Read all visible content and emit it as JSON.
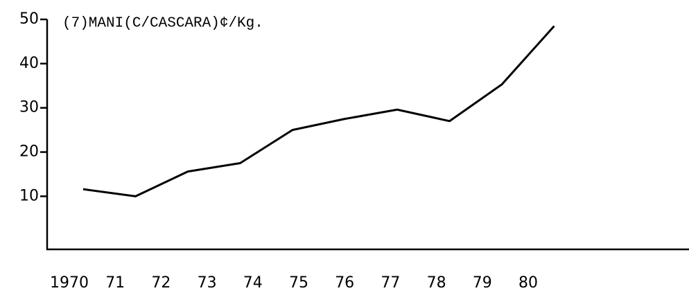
{
  "chart_data": {
    "type": "line",
    "title": "(7)MANI(C/CASCARA)¢/Kg.",
    "categories": [
      "1970",
      "71",
      "72",
      "73",
      "74",
      "75",
      "76",
      "77",
      "78",
      "79",
      "80"
    ],
    "series": [
      {
        "name": null,
        "color": "#000000",
        "values": [
          11.6,
          10,
          15.6,
          17.5,
          25,
          27.5,
          29.6,
          27,
          35.3,
          48.5,
          null
        ]
      }
    ],
    "ylim": [
      -2,
      50
    ],
    "yticks": [
      10,
      20,
      30,
      40,
      50
    ],
    "grid": false
  }
}
